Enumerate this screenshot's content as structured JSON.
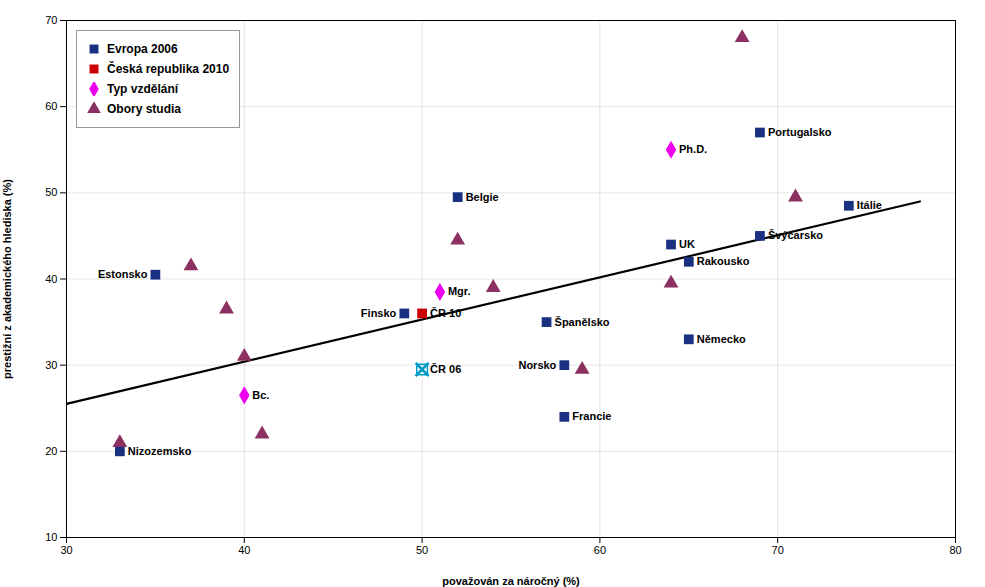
{
  "chart_data": {
    "type": "scatter",
    "xlabel": "považován za náročný (%)",
    "ylabel": "prestižní z akademického hlediska (%)",
    "xlim": [
      30,
      80
    ],
    "ylim": [
      10,
      70
    ],
    "xticks": [
      30,
      40,
      50,
      60,
      70,
      80
    ],
    "yticks": [
      10,
      20,
      30,
      40,
      50,
      60,
      70
    ],
    "grid": true,
    "legend": "upper left",
    "series": [
      {
        "type": "line",
        "color": "#000000",
        "x": [
          30,
          78
        ],
        "y": [
          25.5,
          49
        ]
      },
      {
        "name": "Evropa 2006",
        "type": "scatter",
        "marker": "square",
        "color": "#1a3080",
        "x": [
          33,
          35,
          49,
          52,
          57,
          58,
          58,
          64,
          65,
          65,
          69,
          69,
          74
        ],
        "y": [
          20,
          40.5,
          36,
          49.5,
          35,
          30,
          24,
          44,
          33,
          42,
          57,
          45,
          48.5
        ],
        "labels": [
          "Nizozemsko",
          "Estonsko",
          "Finsko",
          "Belgie",
          "Španělsko",
          "Norsko",
          "Francie",
          "UK",
          "Německo",
          "Rakousko",
          "Portugalsko",
          "Švýcarsko",
          "Itálie"
        ]
      },
      {
        "type": "scatter",
        "marker": "x",
        "color": "#009ac7",
        "x": [
          50
        ],
        "y": [
          29.5
        ],
        "labels": [
          "ČR 06"
        ]
      },
      {
        "name": "Česká republika 2010",
        "type": "scatter",
        "marker": "square",
        "color": "#cc0000",
        "x": [
          50
        ],
        "y": [
          36
        ],
        "labels": [
          "ČR 10"
        ]
      },
      {
        "name": "Typ vzdělání",
        "type": "scatter",
        "marker": "diamond",
        "color": "#ee00ee",
        "x": [
          40,
          51,
          64
        ],
        "y": [
          26.5,
          38.5,
          55
        ],
        "labels": [
          "Bc.",
          "Mgr.",
          "Ph.D."
        ]
      },
      {
        "name": "Obory studia",
        "type": "scatter",
        "marker": "triangle",
        "color": "#8b3060",
        "x": [
          33,
          37,
          39,
          40,
          41,
          52,
          54,
          59,
          64,
          68,
          71
        ],
        "y": [
          21,
          41.5,
          36.5,
          31,
          22,
          44.5,
          39,
          29.5,
          39.5,
          68,
          49.5
        ]
      }
    ]
  }
}
